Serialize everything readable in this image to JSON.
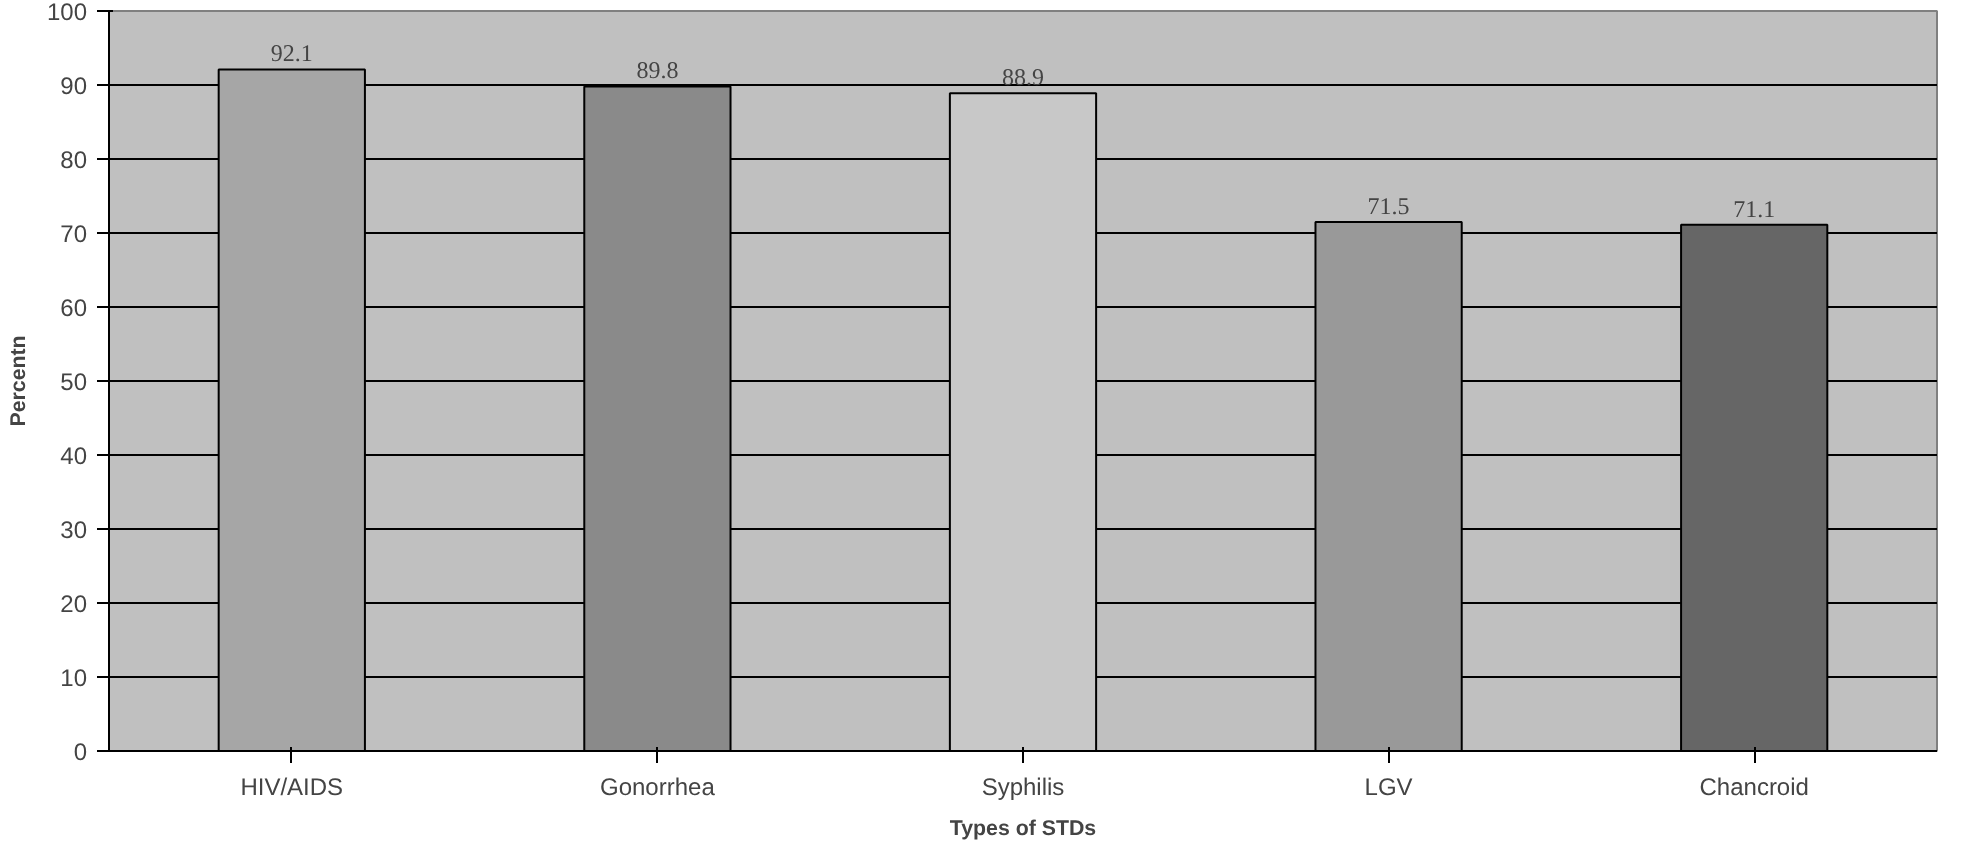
{
  "chart_data": {
    "type": "bar",
    "xlabel": "Types of STDs",
    "ylabel": "Percentn",
    "categories": [
      "HIV/AIDS",
      "Gonorrhea",
      "Syphilis",
      "LGV",
      "Chancroid"
    ],
    "values": [
      92.1,
      89.8,
      88.9,
      71.5,
      71.1
    ],
    "colors": [
      "#a6a6a6",
      "#8a8a8a",
      "#c8c8c8",
      "#999999",
      "#666666"
    ],
    "ylim": [
      0,
      100
    ],
    "yticks": [
      0,
      10,
      20,
      30,
      40,
      50,
      60,
      70,
      80,
      90,
      100
    ],
    "grid": "y",
    "data_labels": true
  }
}
